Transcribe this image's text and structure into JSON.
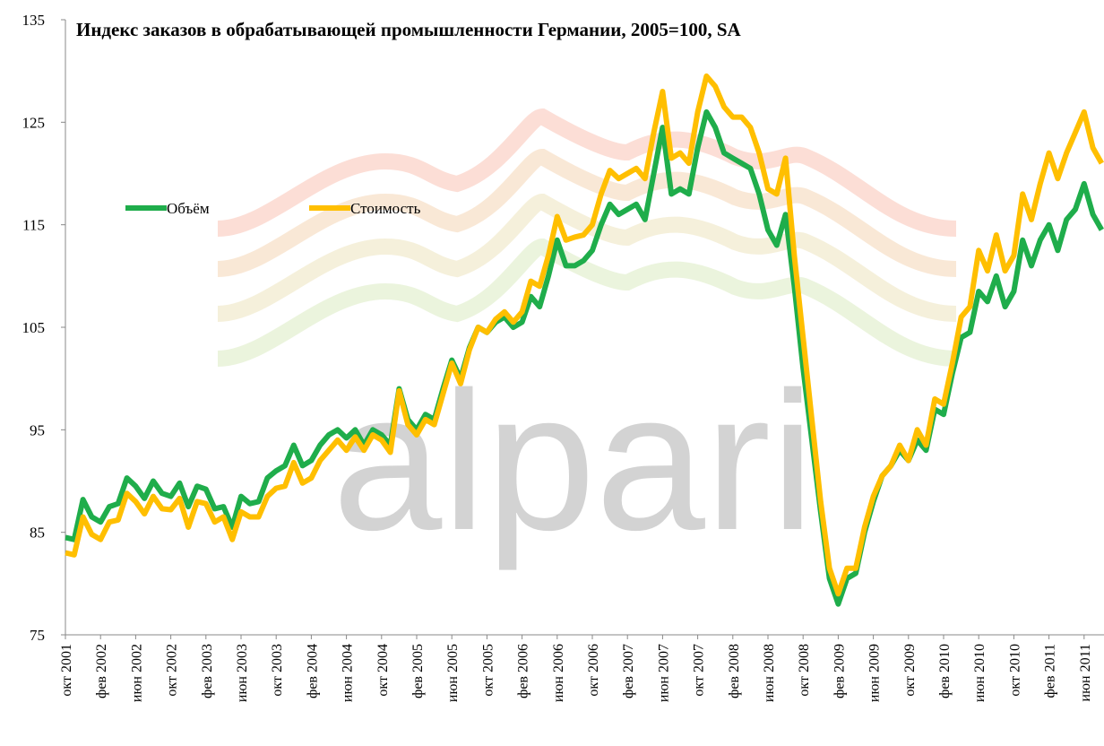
{
  "chart_data": {
    "type": "line",
    "title": "Индекс заказов в обрабатывающей промышленности Германии, 2005=100, SA",
    "watermark": "alpari",
    "categories": [
      "окт 2001",
      null,
      null,
      null,
      "фев 2002",
      null,
      null,
      null,
      "июн 2002",
      null,
      null,
      null,
      "окт 2002",
      null,
      null,
      null,
      "фев 2003",
      null,
      null,
      null,
      "июн 2003",
      null,
      null,
      null,
      "окт 2003",
      null,
      null,
      null,
      "фев 2004",
      null,
      null,
      null,
      "июн 2004",
      null,
      null,
      null,
      "окт 2004",
      null,
      null,
      null,
      "фев 2005",
      null,
      null,
      null,
      "июн 2005",
      null,
      null,
      null,
      "окт 2005",
      null,
      null,
      null,
      "фев 2006",
      null,
      null,
      null,
      "июн 2006",
      null,
      null,
      null,
      "окт 2006",
      null,
      null,
      null,
      "фев 2007",
      null,
      null,
      null,
      "июн 2007",
      null,
      null,
      null,
      "окт 2007",
      null,
      null,
      null,
      "фев 2008",
      null,
      null,
      null,
      "июн 2008",
      null,
      null,
      null,
      "окт 2008",
      null,
      null,
      null,
      "фев 2009",
      null,
      null,
      null,
      "июн 2009",
      null,
      null,
      null,
      "окт 2009",
      null,
      null,
      null,
      "фев 2010",
      null,
      null,
      null,
      "июн 2010",
      null,
      null,
      null,
      "окт 2010",
      null,
      null,
      null,
      "фев 2011",
      null,
      null,
      null,
      "июн 2011",
      null,
      null
    ],
    "series": [
      {
        "name": "Объём",
        "color": "#1fad4b",
        "values": [
          84.5,
          84.3,
          88.2,
          86.5,
          86.0,
          87.5,
          87.8,
          90.3,
          89.5,
          88.3,
          90.0,
          88.8,
          88.5,
          89.8,
          87.5,
          89.5,
          89.2,
          87.3,
          87.5,
          85.5,
          88.5,
          87.8,
          88.0,
          90.3,
          91.0,
          91.5,
          93.5,
          91.5,
          92.0,
          93.5,
          94.5,
          95.0,
          94.2,
          95.0,
          93.5,
          95.0,
          94.5,
          93.5,
          99.0,
          96.0,
          95.0,
          96.5,
          96.0,
          99.0,
          101.8,
          100.0,
          103.0,
          105.0,
          104.5,
          105.5,
          106.0,
          105.0,
          105.5,
          108.0,
          107.0,
          110.0,
          113.5,
          111.0,
          111.0,
          111.5,
          112.5,
          115.0,
          117.0,
          116.0,
          116.5,
          117.0,
          115.5,
          120.0,
          124.5,
          118.0,
          118.5,
          118.0,
          122.5,
          126.0,
          124.5,
          122.0,
          121.5,
          121.0,
          120.5,
          118.0,
          114.5,
          113.0,
          116.0,
          109.0,
          101.0,
          94.0,
          87.0,
          80.5,
          78.0,
          80.5,
          81.0,
          85.0,
          88.0,
          90.5,
          91.5,
          93.0,
          92.0,
          94.0,
          93.0,
          97.0,
          96.5,
          100.5,
          104.0,
          104.5,
          108.5,
          107.5,
          110.0,
          107.0,
          108.5,
          113.5,
          111.0,
          113.5,
          115.0,
          112.5,
          115.5,
          116.5,
          119.0,
          116.0,
          114.5
        ]
      },
      {
        "name": "Стоимость",
        "color": "#ffbf00",
        "values": [
          83.0,
          82.8,
          86.5,
          84.8,
          84.3,
          86.0,
          86.2,
          88.8,
          88.0,
          86.8,
          88.5,
          87.3,
          87.2,
          88.3,
          85.5,
          88.0,
          87.8,
          86.0,
          86.5,
          84.3,
          87.0,
          86.5,
          86.5,
          88.5,
          89.3,
          89.5,
          91.8,
          89.8,
          90.3,
          92.0,
          93.0,
          94.0,
          93.0,
          94.3,
          93.0,
          94.5,
          94.0,
          92.8,
          98.8,
          95.5,
          94.5,
          96.0,
          95.5,
          98.5,
          101.5,
          99.5,
          102.8,
          105.0,
          104.5,
          105.8,
          106.5,
          105.5,
          106.5,
          109.5,
          109.0,
          112.0,
          115.8,
          113.5,
          113.8,
          114.0,
          115.0,
          118.0,
          120.3,
          119.5,
          120.0,
          120.5,
          119.5,
          124.0,
          128.0,
          121.5,
          122.0,
          121.0,
          126.0,
          129.5,
          128.5,
          126.5,
          125.5,
          125.5,
          124.5,
          122.0,
          118.5,
          118.0,
          121.5,
          112.0,
          104.0,
          96.0,
          88.0,
          81.5,
          79.0,
          81.5,
          81.5,
          85.5,
          88.5,
          90.5,
          91.5,
          93.5,
          92.0,
          95.0,
          93.5,
          98.0,
          97.5,
          101.5,
          106.0,
          107.0,
          112.5,
          110.5,
          114.0,
          110.5,
          112.0,
          118.0,
          115.5,
          119.0,
          122.0,
          119.5,
          122.0,
          124.0,
          126.0,
          122.5,
          121.0
        ]
      }
    ],
    "ylim": [
      75,
      135
    ],
    "yticks": [
      75,
      85,
      95,
      105,
      115,
      125,
      135
    ],
    "grid": false
  }
}
